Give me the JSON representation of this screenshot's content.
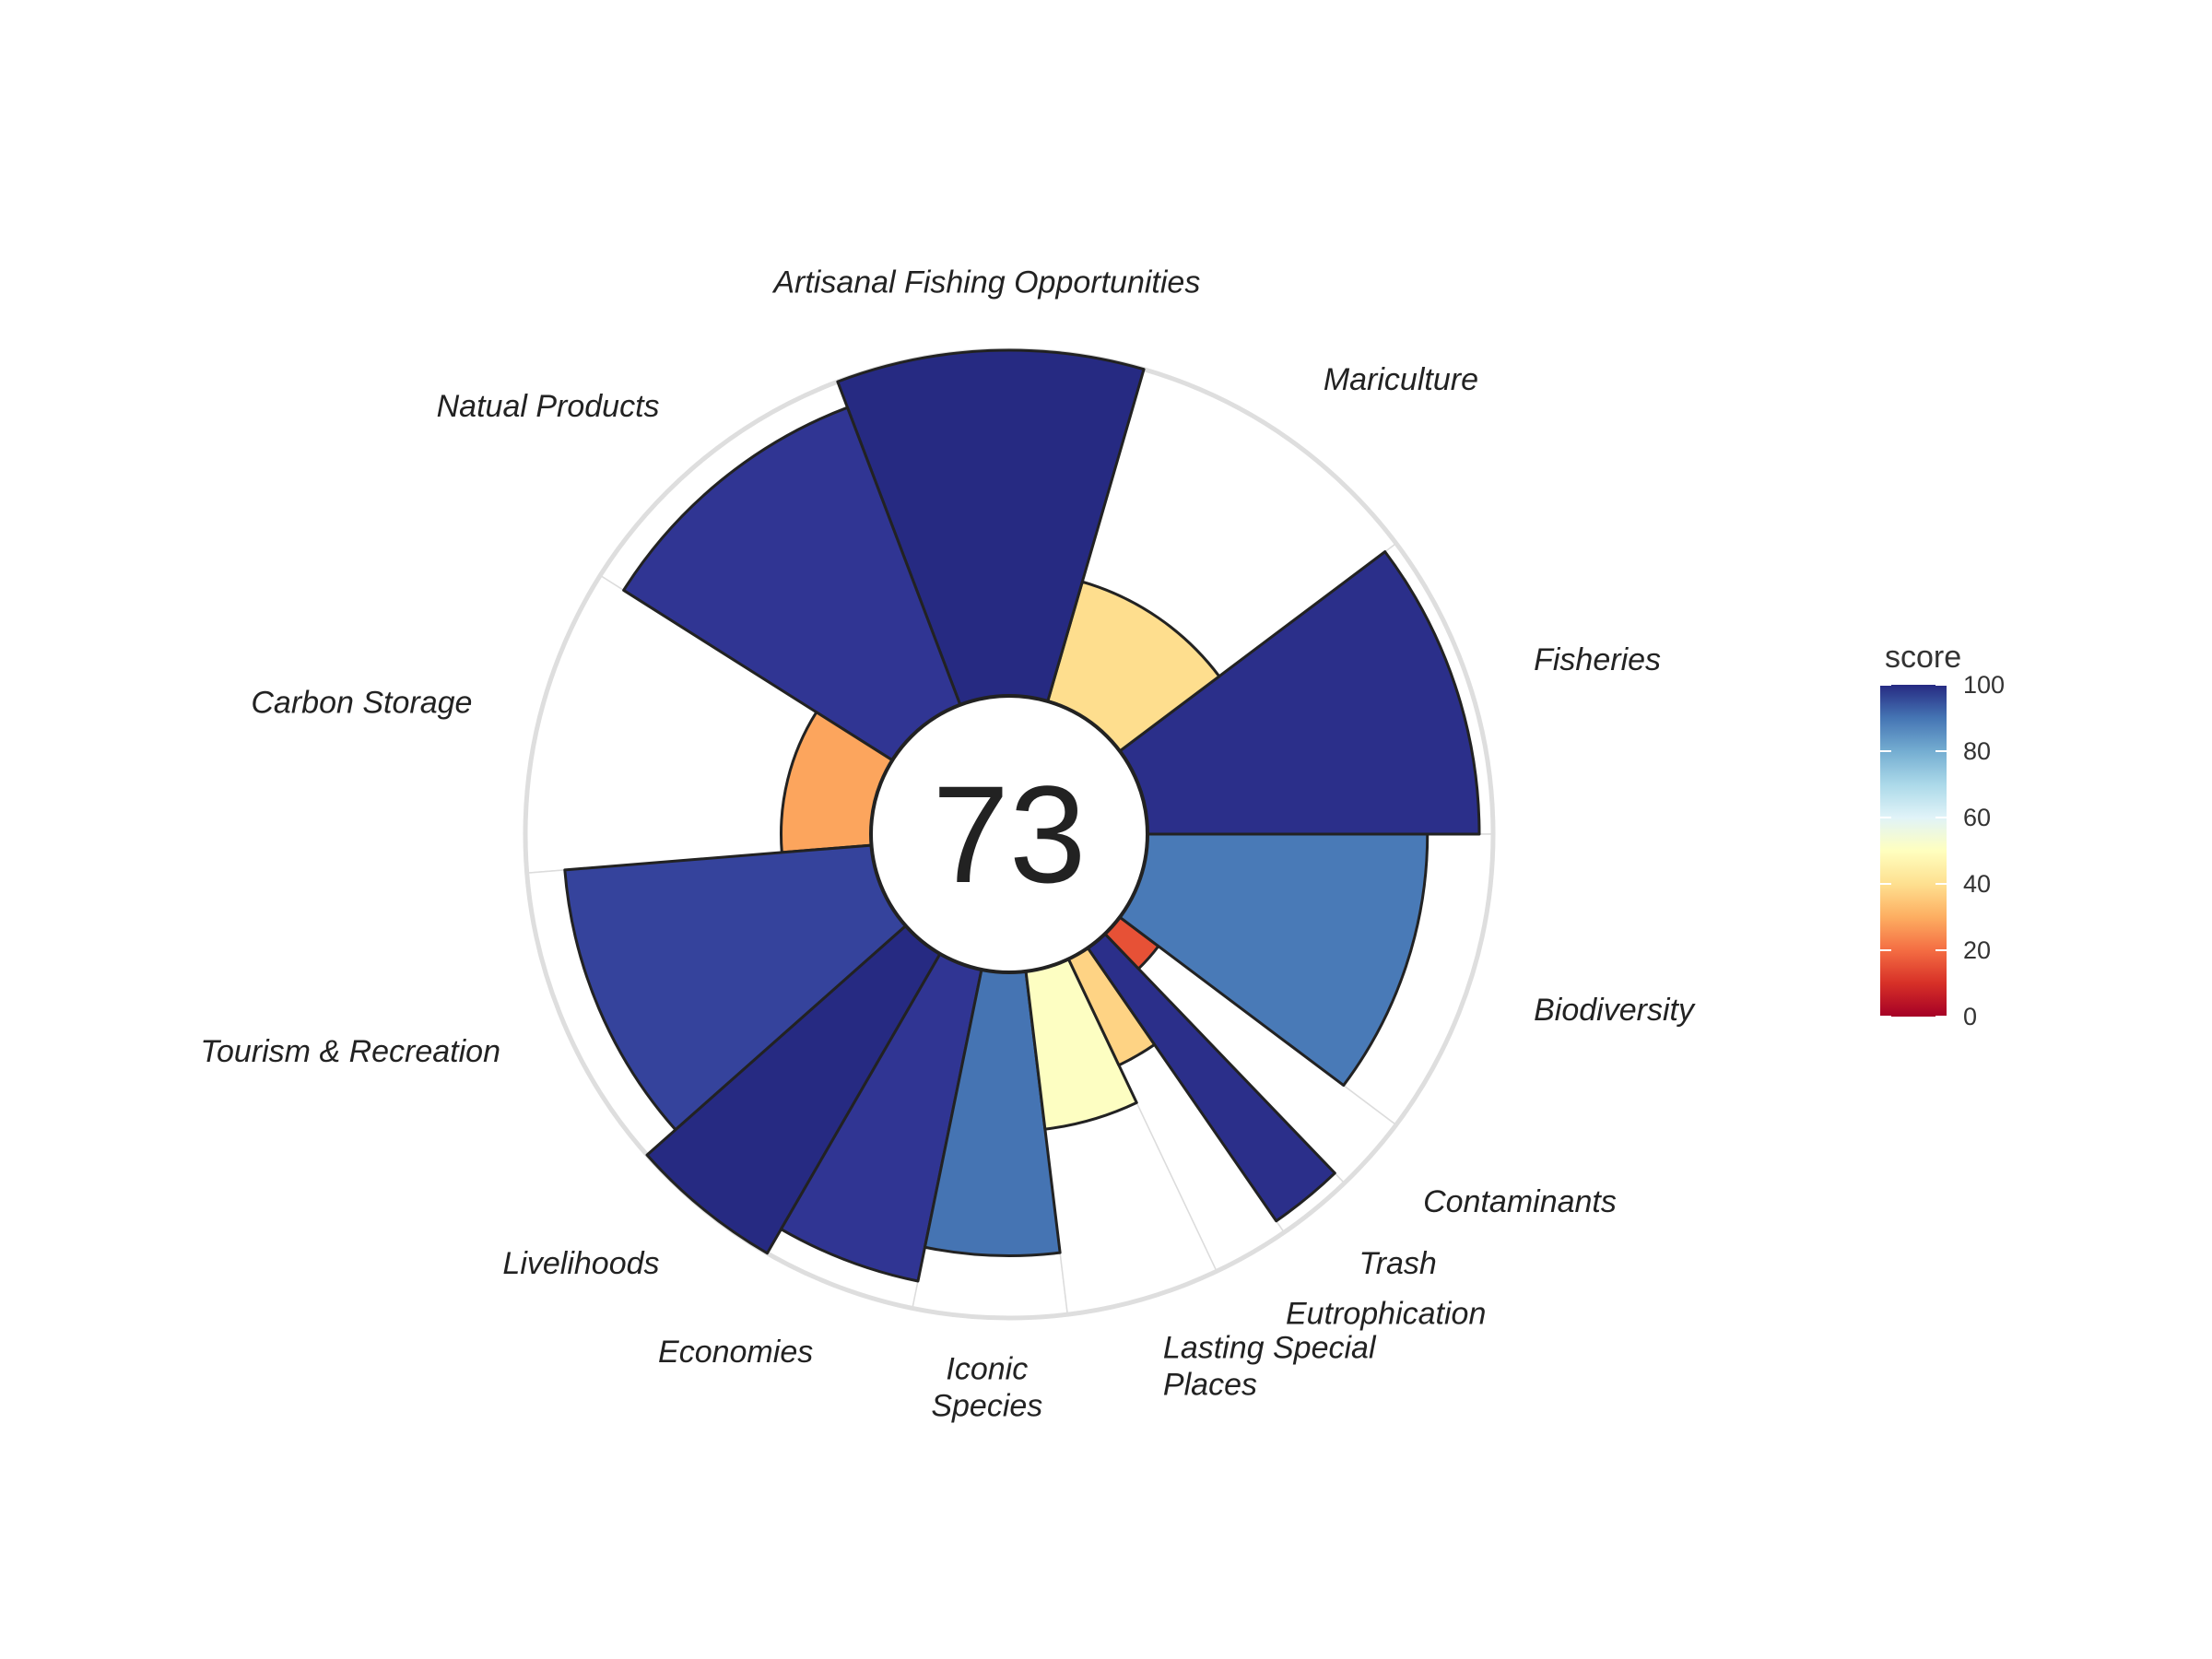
{
  "chart_data": {
    "type": "polar-bar",
    "center_value": "73",
    "ylim": [
      0,
      100
    ],
    "legend": {
      "title": "score",
      "ticks": [
        "0",
        "20",
        "40",
        "60",
        "80",
        "100"
      ],
      "placement": "right"
    },
    "colorscale": [
      "#a50026",
      "#d73027",
      "#f46d43",
      "#fdae61",
      "#fee090",
      "#ffffbf",
      "#e0f3f8",
      "#abd9e9",
      "#74add1",
      "#4575b4",
      "#313695",
      "#262a82"
    ],
    "goals": [
      {
        "label": "Fisheries",
        "score": 96,
        "weight": 1
      },
      {
        "label": "Mariculture",
        "score": 36,
        "weight": 1
      },
      {
        "label": "Artisanal Fishing Opportunities",
        "score": 100,
        "weight": 1
      },
      {
        "label": "Natual Products",
        "score": 92,
        "weight": 1
      },
      {
        "label": "Carbon Storage",
        "score": 26,
        "weight": 1
      },
      {
        "label": "Tourism & Recreation",
        "score": 89,
        "weight": 1
      },
      {
        "label": "Livelihoods",
        "score": 100,
        "weight": 0.5
      },
      {
        "label": "Economies",
        "score": 92,
        "weight": 0.5
      },
      {
        "label": "Iconic Species",
        "score": 82,
        "weight": 0.5
      },
      {
        "label": "Lasting Special Places",
        "score": 46,
        "weight": 0.5
      },
      {
        "label": "Eutrophication",
        "score": 34,
        "weight": 0.25
      },
      {
        "label": "Trash",
        "score": 96,
        "weight": 0.25
      },
      {
        "label": "Contaminants",
        "score": 14,
        "weight": 0.25
      },
      {
        "label": "Biodiversity",
        "score": 81,
        "weight": 1
      }
    ]
  }
}
